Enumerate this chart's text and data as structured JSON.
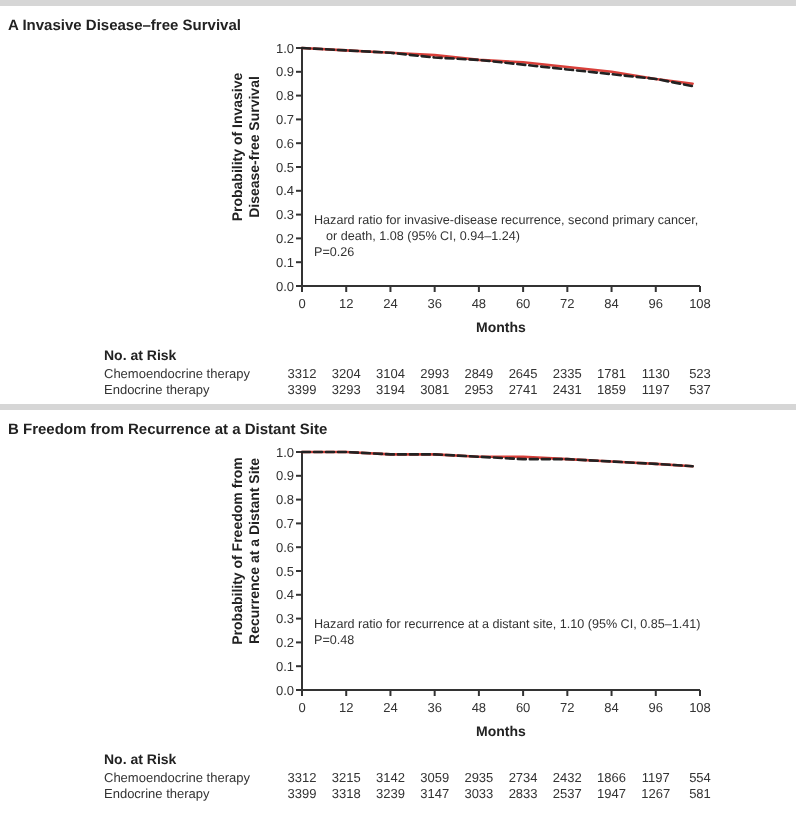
{
  "chart_data": [
    {
      "type": "line",
      "title": "A Invasive Disease–free Survival",
      "xlabel": "Months",
      "ylabel": "Probability of Invasive Disease-free Survival",
      "x": [
        0,
        12,
        24,
        36,
        48,
        60,
        72,
        84,
        96,
        106
      ],
      "series": [
        {
          "color": "#d9403a",
          "line_style": "solid",
          "values": [
            1.0,
            0.99,
            0.98,
            0.97,
            0.95,
            0.94,
            0.92,
            0.9,
            0.87,
            0.85
          ]
        },
        {
          "color": "#222222",
          "line_style": "dashed",
          "values": [
            1.0,
            0.99,
            0.98,
            0.96,
            0.95,
            0.93,
            0.91,
            0.89,
            0.87,
            0.84
          ]
        }
      ],
      "xlim": [
        0,
        108
      ],
      "xticks": [
        0,
        12,
        24,
        36,
        48,
        60,
        72,
        84,
        96,
        108
      ],
      "ylim": [
        0,
        1
      ],
      "yticks": [
        {
          "value": 0,
          "label": "0.0"
        },
        {
          "value": 0.1,
          "label": "0.1"
        },
        {
          "value": 0.2,
          "label": "0.2"
        },
        {
          "value": 0.3,
          "label": "0.3"
        },
        {
          "value": 0.4,
          "label": "0.4"
        },
        {
          "value": 0.5,
          "label": "0.5"
        },
        {
          "value": 0.6,
          "label": "0.6"
        },
        {
          "value": 0.7,
          "label": "0.7"
        },
        {
          "value": 0.8,
          "label": "0.8"
        },
        {
          "value": 0.9,
          "label": "0.9"
        },
        {
          "value": 1,
          "label": "1.0"
        }
      ],
      "grid": false,
      "annotations": [
        "Hazard ratio for invasive-disease recurrence, second primary cancer, or death, 1.08 (95% CI, 0.94–1.24)",
        "P=0.26",
        "No. at Risk",
        "Chemoendocrine therapy",
        "3312 3204 3104 2993 2849 2645 2335 1781 1130 523",
        "Endocrine therapy",
        "3399 3293 3194 3081 2953 2741 2431 1859 1197 537"
      ]
    },
    {
      "type": "line",
      "title": "B Freedom from Recurrence at a Distant Site",
      "xlabel": "Months",
      "ylabel": "Probability of Freedom from Recurrence at a Distant Site",
      "x": [
        0,
        12,
        24,
        36,
        48,
        60,
        72,
        84,
        96,
        106
      ],
      "series": [
        {
          "color": "#d9403a",
          "line_style": "solid",
          "values": [
            1.0,
            1.0,
            0.99,
            0.99,
            0.98,
            0.98,
            0.97,
            0.96,
            0.95,
            0.94
          ]
        },
        {
          "color": "#222222",
          "line_style": "dashed",
          "values": [
            1.0,
            1.0,
            0.99,
            0.99,
            0.98,
            0.97,
            0.97,
            0.96,
            0.95,
            0.94
          ]
        }
      ],
      "xlim": [
        0,
        108
      ],
      "xticks": [
        0,
        12,
        24,
        36,
        48,
        60,
        72,
        84,
        96,
        108
      ],
      "ylim": [
        0,
        1
      ],
      "yticks": [
        {
          "value": 0,
          "label": "0.0"
        },
        {
          "value": 0.1,
          "label": "0.1"
        },
        {
          "value": 0.2,
          "label": "0.2"
        },
        {
          "value": 0.3,
          "label": "0.3"
        },
        {
          "value": 0.4,
          "label": "0.4"
        },
        {
          "value": 0.5,
          "label": "0.5"
        },
        {
          "value": 0.6,
          "label": "0.6"
        },
        {
          "value": 0.7,
          "label": "0.7"
        },
        {
          "value": 0.8,
          "label": "0.8"
        },
        {
          "value": 0.9,
          "label": "0.9"
        },
        {
          "value": 1,
          "label": "1.0"
        }
      ],
      "grid": false,
      "annotations": [
        "Hazard ratio for recurrence at a distant site, 1.10 (95% CI, 0.85–1.41)",
        "P=0.48",
        "No. at Risk",
        "Chemoendocrine therapy",
        "3312 3215 3142 3059 2935 2734 2432 1866 1197 554",
        "Endocrine therapy",
        "3399 3318 3239 3147 3033 2833 2537 1947 1267 581"
      ]
    }
  ]
}
